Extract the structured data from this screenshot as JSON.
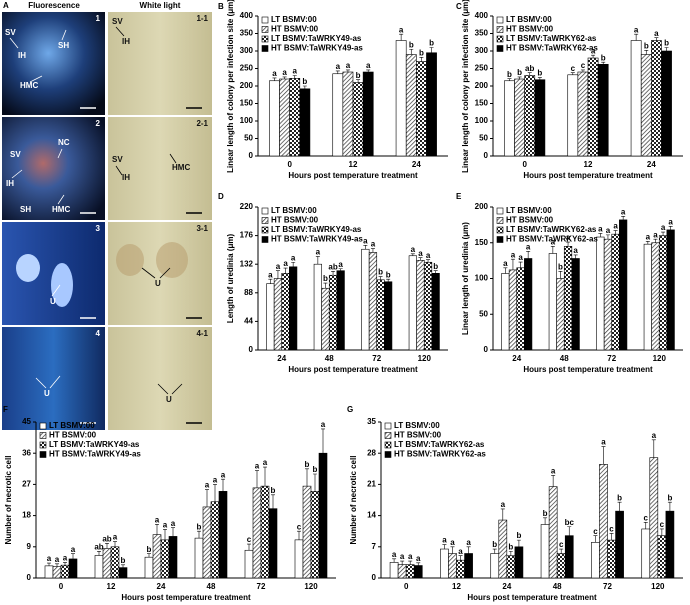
{
  "panel_a": {
    "label": "A",
    "headers": [
      "Fluorescence",
      "White light"
    ],
    "panels": [
      {
        "number": "1",
        "labels": [
          "SV",
          "SH",
          "IH",
          "HMC"
        ]
      },
      {
        "number": "1-1",
        "labels": [
          "SV",
          "IH"
        ]
      },
      {
        "number": "2",
        "labels": [
          "NC",
          "SV",
          "IH",
          "SH",
          "HMC"
        ]
      },
      {
        "number": "2-1",
        "labels": [
          "SV",
          "IH",
          "HMC"
        ]
      },
      {
        "number": "3",
        "labels": [
          "U"
        ]
      },
      {
        "number": "3-1",
        "labels": [
          "U"
        ]
      },
      {
        "number": "4",
        "labels": [
          "U"
        ]
      },
      {
        "number": "4-1",
        "labels": [
          "U"
        ]
      }
    ]
  },
  "chart_data": [
    {
      "type": "bar",
      "panel": "B",
      "ylabel": "Linear length of colony per infection site (μm)",
      "xlabel": "Hours post temperature treatment",
      "categories": [
        "0",
        "12",
        "24"
      ],
      "ylim": [
        0,
        400
      ],
      "yticks": [
        0,
        50,
        100,
        150,
        200,
        250,
        300,
        350,
        400
      ],
      "legend": "top-left",
      "series": [
        {
          "name": "LT BSMV:00",
          "pattern": "white",
          "values": [
            215,
            235,
            330
          ],
          "errors": [
            8,
            8,
            18
          ],
          "letters": [
            "a",
            "a",
            "a"
          ]
        },
        {
          "name": "HT BSMV:00",
          "pattern": "hatch",
          "values": [
            220,
            240,
            290
          ],
          "errors": [
            6,
            6,
            15
          ],
          "letters": [
            "a",
            "a",
            "b"
          ]
        },
        {
          "name": "LT BSMV:TaWRKY49-as",
          "pattern": "checker",
          "values": [
            222,
            210,
            270
          ],
          "errors": [
            8,
            8,
            12
          ],
          "letters": [
            "a",
            "b",
            "b"
          ]
        },
        {
          "name": "HT BSMV:TaWRKY49-as",
          "pattern": "black",
          "values": [
            192,
            240,
            295
          ],
          "errors": [
            8,
            6,
            15
          ],
          "letters": [
            "b",
            "a",
            "b"
          ]
        }
      ]
    },
    {
      "type": "bar",
      "panel": "C",
      "ylabel": "Linear length of colony per infection site (μm)",
      "xlabel": "Hours post temperature treatment",
      "categories": [
        "0",
        "12",
        "24"
      ],
      "ylim": [
        0,
        400
      ],
      "yticks": [
        0,
        50,
        100,
        150,
        200,
        250,
        300,
        350,
        400
      ],
      "legend": "top-left",
      "series": [
        {
          "name": "LT BSMV:00",
          "pattern": "white",
          "values": [
            215,
            232,
            330
          ],
          "errors": [
            6,
            6,
            18
          ],
          "letters": [
            "b",
            "c",
            "a"
          ]
        },
        {
          "name": "HT BSMV:00",
          "pattern": "hatch",
          "values": [
            220,
            240,
            290
          ],
          "errors": [
            6,
            6,
            12
          ],
          "letters": [
            "b",
            "c",
            "b"
          ]
        },
        {
          "name": "LT BSMV:TaWRKY62-as",
          "pattern": "checker",
          "values": [
            230,
            280,
            330
          ],
          "errors": [
            8,
            8,
            8
          ],
          "letters": [
            "ab",
            "a",
            "a"
          ]
        },
        {
          "name": "HT BSMV:TaWRKY62-as",
          "pattern": "black",
          "values": [
            218,
            262,
            300
          ],
          "errors": [
            6,
            6,
            10
          ],
          "letters": [
            "b",
            "b",
            "b"
          ]
        }
      ]
    },
    {
      "type": "bar",
      "panel": "D",
      "ylabel": "Length of uredinia (μm)",
      "xlabel": "Hours post temperature treatment",
      "categories": [
        "24",
        "48",
        "72",
        "120"
      ],
      "ylim": [
        0,
        220
      ],
      "yticks": [
        0,
        44,
        88,
        132,
        176,
        220
      ],
      "legend": "top-left",
      "series": [
        {
          "name": "LT BSMV:00",
          "pattern": "white",
          "values": [
            102,
            132,
            155,
            145
          ],
          "errors": [
            7,
            12,
            6,
            3
          ],
          "letters": [
            "a",
            "a",
            "a",
            "a"
          ]
        },
        {
          "name": "HT BSMV:00",
          "pattern": "hatch",
          "values": [
            110,
            95,
            150,
            138
          ],
          "errors": [
            12,
            8,
            6,
            4
          ],
          "letters": [
            "a",
            "b",
            "a",
            "a"
          ]
        },
        {
          "name": "LT BSMV:TaWRKY49-as",
          "pattern": "checker",
          "values": [
            118,
            115,
            108,
            135
          ],
          "errors": [
            8,
            6,
            5,
            4
          ],
          "letters": [
            "a",
            "ab",
            "b",
            "a"
          ]
        },
        {
          "name": "HT BSMV:TaWRKY49-as",
          "pattern": "black",
          "values": [
            128,
            122,
            105,
            118
          ],
          "errors": [
            7,
            3,
            4,
            4
          ],
          "letters": [
            "a",
            "a",
            "b",
            "b"
          ]
        }
      ]
    },
    {
      "type": "bar",
      "panel": "E",
      "ylabel": "Linear length of uredinia (μm)",
      "xlabel": "Hours post temperature treatment",
      "categories": [
        "24",
        "48",
        "72",
        "120"
      ],
      "ylim": [
        0,
        200
      ],
      "yticks": [
        0,
        50,
        100,
        150,
        200
      ],
      "legend": "top-left",
      "series": [
        {
          "name": "LT BSMV:00",
          "pattern": "white",
          "values": [
            107,
            135,
            158,
            148
          ],
          "errors": [
            8,
            10,
            5,
            4
          ],
          "letters": [
            "a",
            "a",
            "a",
            "a"
          ]
        },
        {
          "name": "HT BSMV:00",
          "pattern": "hatch",
          "values": [
            112,
            100,
            155,
            150
          ],
          "errors": [
            15,
            10,
            6,
            5
          ],
          "letters": [
            "a",
            "b",
            "a",
            "a"
          ]
        },
        {
          "name": "LT BSMV:TaWRKY62-as",
          "pattern": "checker",
          "values": [
            115,
            145,
            162,
            160
          ],
          "errors": [
            8,
            6,
            5,
            5
          ],
          "letters": [
            "a",
            "a",
            "a",
            "a"
          ]
        },
        {
          "name": "HT BSMV:TaWRKY62-as",
          "pattern": "black",
          "values": [
            128,
            128,
            182,
            168
          ],
          "errors": [
            10,
            5,
            5,
            5
          ],
          "letters": [
            "a",
            "a",
            "a",
            "a"
          ]
        }
      ]
    },
    {
      "type": "bar",
      "panel": "F",
      "ylabel": "Number of necrotic cell",
      "xlabel": "Hours post temperature treatment",
      "categories": [
        "0",
        "12",
        "24",
        "48",
        "72",
        "120"
      ],
      "ylim": [
        0,
        45
      ],
      "yticks": [
        0,
        9,
        18,
        27,
        36,
        45
      ],
      "legend": "top-left",
      "series": [
        {
          "name": "LT BSMV:00",
          "pattern": "white",
          "values": [
            3.5,
            6.5,
            6,
            11.5,
            8,
            11
          ],
          "errors": [
            0.8,
            1.2,
            1,
            2,
            1.8,
            2.5
          ],
          "letters": [
            "a",
            "ab",
            "b",
            "b",
            "c",
            "c"
          ]
        },
        {
          "name": "HT BSMV:00",
          "pattern": "hatch",
          "values": [
            3.3,
            8.5,
            12.5,
            20.5,
            26,
            26.5
          ],
          "errors": [
            0.8,
            1.5,
            3,
            5,
            5,
            5
          ],
          "letters": [
            "a",
            "ab",
            "a",
            "a",
            "a",
            "b"
          ]
        },
        {
          "name": "LT BSMV:TaWRKY49-as",
          "pattern": "checker",
          "values": [
            3.7,
            9,
            11,
            22,
            26.5,
            25
          ],
          "errors": [
            0.8,
            1.5,
            3,
            5,
            5.5,
            5
          ],
          "letters": [
            "a",
            "a",
            "a",
            "a",
            "a",
            "b"
          ]
        },
        {
          "name": "HT BSMV:TaWRKY49-as",
          "pattern": "black",
          "values": [
            5.5,
            3,
            12,
            25,
            20,
            36
          ],
          "errors": [
            1.5,
            0.8,
            2.5,
            3.5,
            4,
            7
          ],
          "letters": [
            "a",
            "b",
            "a",
            "a",
            "b",
            "a"
          ]
        }
      ]
    },
    {
      "type": "bar",
      "panel": "G",
      "ylabel": "Number of necrotic cell",
      "xlabel": "Hours post temperature treatment",
      "categories": [
        "0",
        "12",
        "24",
        "48",
        "72",
        "120"
      ],
      "ylim": [
        0,
        35
      ],
      "yticks": [
        0,
        7,
        14,
        21,
        28,
        35
      ],
      "legend": "top-left",
      "series": [
        {
          "name": "LT BSMV:00",
          "pattern": "white",
          "values": [
            3.5,
            6.5,
            5.5,
            12,
            8,
            11
          ],
          "errors": [
            0.8,
            1,
            1,
            1.5,
            1.5,
            1.5
          ],
          "letters": [
            "a",
            "a",
            "b",
            "b",
            "c",
            "c"
          ]
        },
        {
          "name": "HT BSMV:00",
          "pattern": "hatch",
          "values": [
            3,
            5.5,
            13,
            20.5,
            25.5,
            27
          ],
          "errors": [
            0.8,
            1.5,
            2.5,
            2.5,
            4,
            4
          ],
          "letters": [
            "a",
            "a",
            "a",
            "a",
            "a",
            "a"
          ]
        },
        {
          "name": "LT BSMV:TaWRKY62-as",
          "pattern": "checker",
          "values": [
            3,
            4,
            5,
            5.5,
            8.5,
            9.5
          ],
          "errors": [
            0.8,
            1,
            1,
            1,
            1.5,
            1.5
          ],
          "letters": [
            "a",
            "a",
            "b",
            "c",
            "c",
            "c"
          ]
        },
        {
          "name": "HT BSMV:TaWRKY62-as",
          "pattern": "black",
          "values": [
            2.8,
            5.5,
            7,
            9.5,
            15,
            15
          ],
          "errors": [
            0.6,
            1.5,
            1.5,
            2,
            2,
            2
          ],
          "letters": [
            "a",
            "a",
            "b",
            "bc",
            "b",
            "b"
          ]
        }
      ]
    }
  ]
}
